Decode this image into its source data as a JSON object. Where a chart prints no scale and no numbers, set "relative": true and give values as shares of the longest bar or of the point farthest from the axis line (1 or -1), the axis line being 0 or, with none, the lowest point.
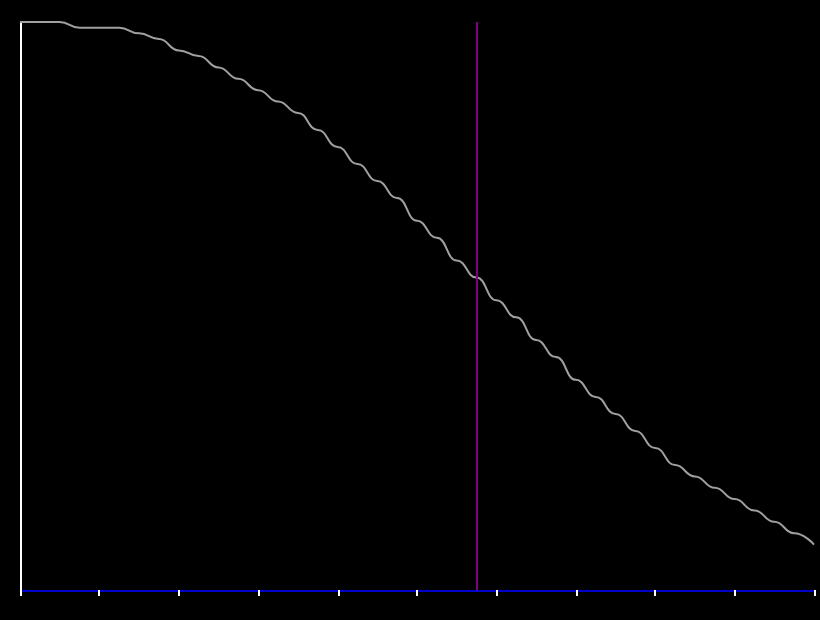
{
  "chart_data": {
    "type": "line",
    "relative": true,
    "marker": "none",
    "line_style": "solid",
    "categories": [
      null,
      null,
      null,
      null,
      null,
      null,
      null,
      null,
      null,
      null,
      null,
      null,
      null,
      null,
      null,
      null,
      null,
      null,
      null,
      null,
      null,
      null,
      null,
      null,
      null,
      null,
      null,
      null,
      null,
      null,
      null,
      null,
      null,
      null,
      null,
      null,
      null,
      null,
      null,
      null,
      null
    ],
    "series": [
      {
        "color": "#a0a0a0",
        "values": [
          1,
          1,
          1,
          0.99,
          0.99,
          0.99,
          0.98,
          0.97,
          0.95,
          0.94,
          0.92,
          0.9,
          0.88,
          0.86,
          0.84,
          0.81,
          0.78,
          0.75,
          0.72,
          0.69,
          0.65,
          0.62,
          0.58,
          0.55,
          0.51,
          0.48,
          0.44,
          0.41,
          0.37,
          0.34,
          0.31,
          0.28,
          0.25,
          0.22,
          0.2,
          0.18,
          0.16,
          0.14,
          0.12,
          0.1,
          0.08
        ]
      }
    ]
  }
}
